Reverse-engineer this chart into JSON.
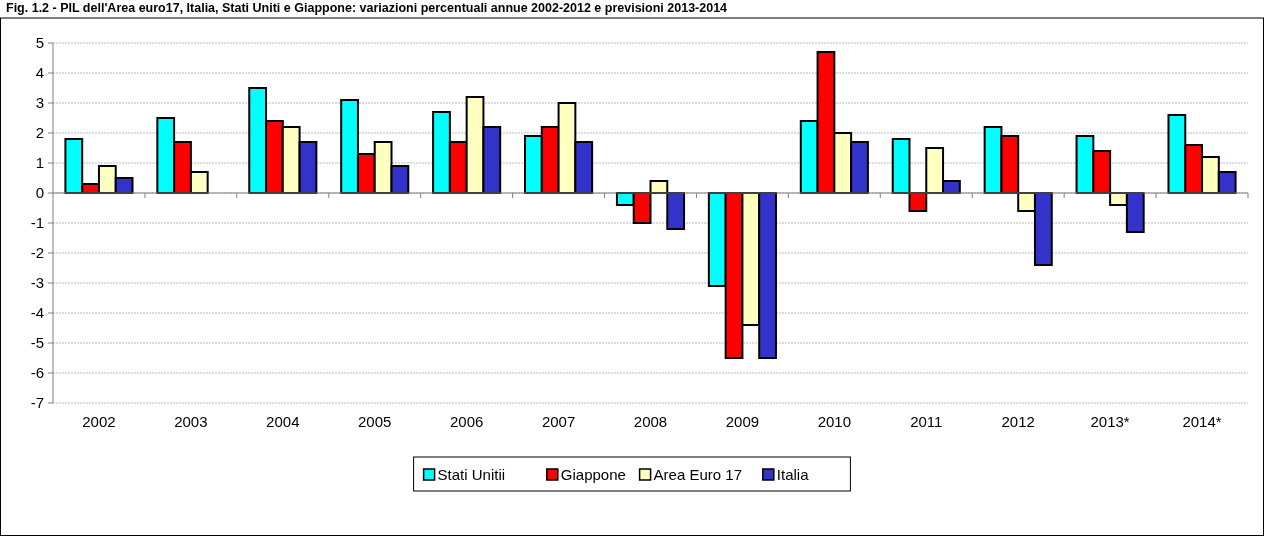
{
  "chart_data": {
    "type": "bar",
    "title": "Fig. 1.2 - PIL dell'Area euro17, Italia, Stati Uniti e Giappone: variazioni percentuali annue 2002-2012 e previsioni 2013-2014",
    "categories": [
      "2002",
      "2003",
      "2004",
      "2005",
      "2006",
      "2007",
      "2008",
      "2009",
      "2010",
      "2011",
      "2012",
      "2013*",
      "2014*"
    ],
    "series": [
      {
        "name": "Stati Unitii",
        "color": "#00ffff",
        "values": [
          1.8,
          2.5,
          3.5,
          3.1,
          2.7,
          1.9,
          -0.4,
          -3.1,
          2.4,
          1.8,
          2.2,
          1.9,
          2.6
        ]
      },
      {
        "name": "Giappone",
        "color": "#ff0000",
        "values": [
          0.3,
          1.7,
          2.4,
          1.3,
          1.7,
          2.2,
          -1.0,
          -5.5,
          4.7,
          -0.6,
          1.9,
          1.4,
          1.6
        ]
      },
      {
        "name": "Area Euro 17",
        "color": "#ffffc0",
        "values": [
          0.9,
          0.7,
          2.2,
          1.7,
          3.2,
          3.0,
          0.4,
          -4.4,
          2.0,
          1.5,
          -0.6,
          -0.4,
          1.2
        ]
      },
      {
        "name": "Italia",
        "color": "#3333cc",
        "values": [
          0.5,
          0,
          1.7,
          0.9,
          2.2,
          1.7,
          -1.2,
          -5.5,
          1.7,
          0.4,
          -2.4,
          -1.3,
          0.7
        ]
      }
    ],
    "ylim": [
      -7,
      5
    ],
    "yticks": [
      -7,
      -6,
      -5,
      -4,
      -3,
      -2,
      -1,
      0,
      1,
      2,
      3,
      4,
      5
    ],
    "grid": "y",
    "legend": "bottom"
  }
}
